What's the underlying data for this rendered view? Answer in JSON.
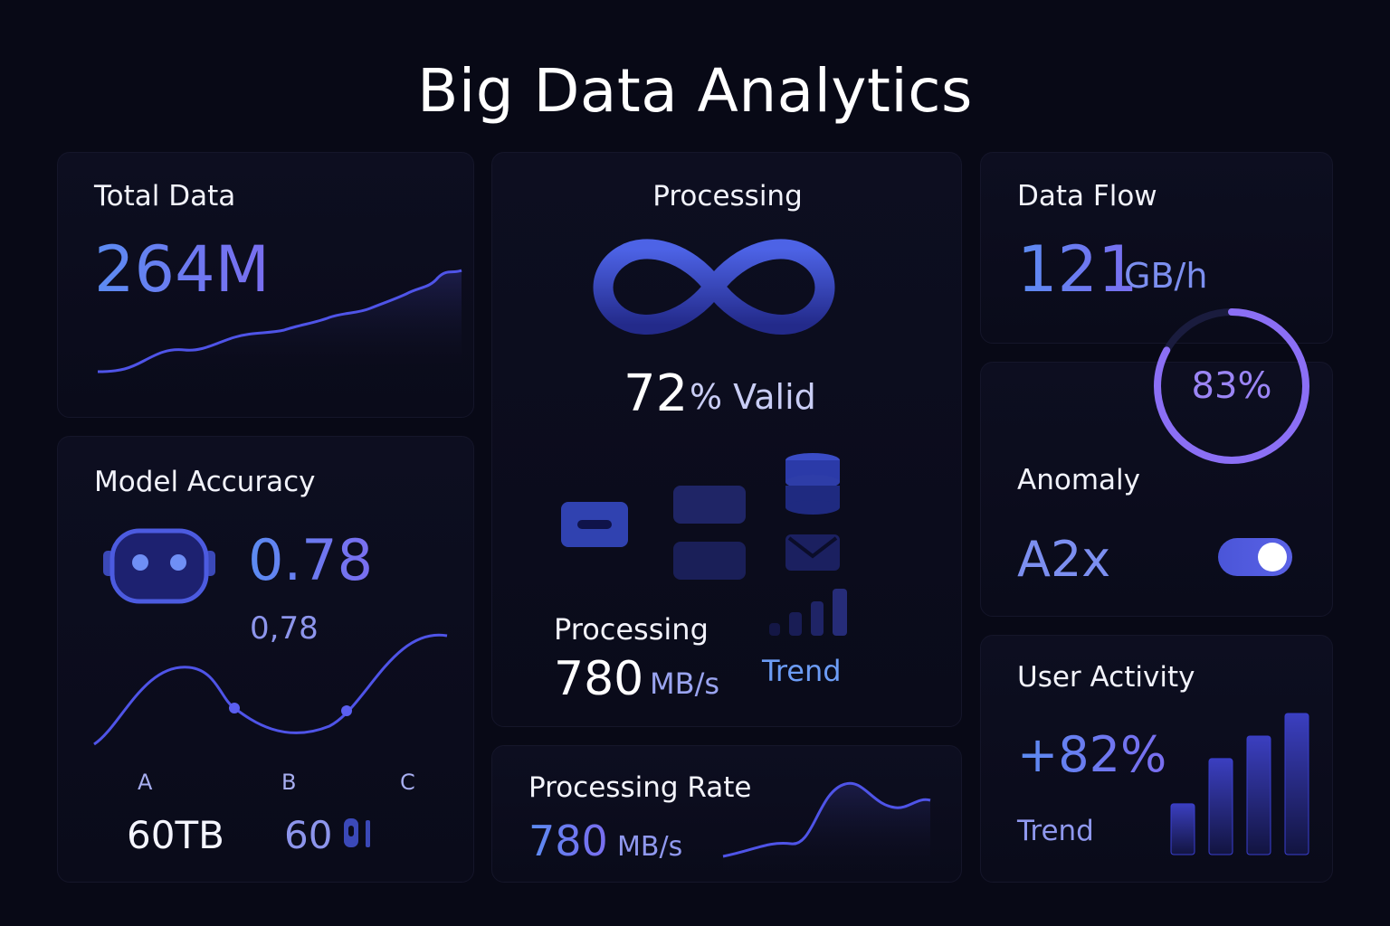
{
  "page": {
    "title": "Big Data Analytics"
  },
  "total_data": {
    "label": "Total Data",
    "value": "264M"
  },
  "model_accuracy": {
    "label": "Model Accuracy",
    "value": "0.78",
    "sub_value": "0,78",
    "points": [
      "A",
      "B",
      "C"
    ],
    "stat1": "60TB",
    "stat2": "60"
  },
  "processing": {
    "label": "Processing",
    "valid_value": "72",
    "valid_unit": "% Valid",
    "rate_label": "Processing",
    "rate_value": "780",
    "rate_unit": "MB/s",
    "trend_label": "Trend"
  },
  "processing_rate": {
    "label": "Processing Rate",
    "value": "780",
    "unit": "MB/s"
  },
  "data_flow": {
    "label": "Data Flow",
    "value": "121",
    "unit": "GB/h",
    "gauge_text": "83%",
    "gauge_fraction": 0.83
  },
  "anomaly": {
    "label": "Anomaly",
    "value": "A2x",
    "toggle_on": true
  },
  "user_activity": {
    "label": "User Activity",
    "value": "+82%",
    "trend_label": "Trend",
    "bar_levels": [
      0.36,
      0.68,
      0.84,
      1.0
    ]
  },
  "colors": {
    "accent_blue": "#5b8cf2",
    "accent_purple": "#8b6ff5",
    "background": "#080916",
    "card": "#0d0e20"
  },
  "icons": [
    "infinity-icon",
    "robot-icon",
    "database-icon",
    "toggle-switch"
  ]
}
